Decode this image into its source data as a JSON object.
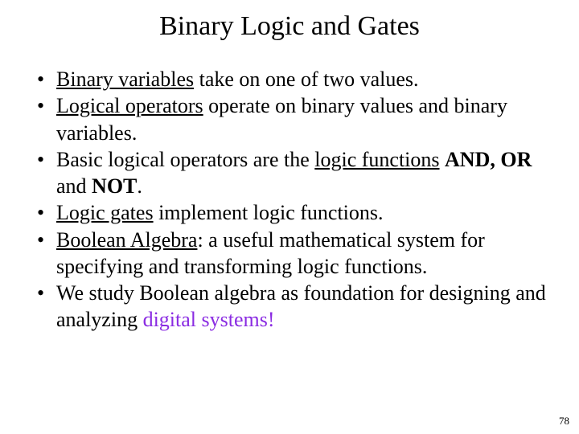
{
  "title": "Binary Logic and Gates",
  "highlight_color": "#8a2be2",
  "bullets": [
    {
      "segments": [
        {
          "text": "Binary variables",
          "underline": true
        },
        {
          "text": " take on one of two values."
        }
      ]
    },
    {
      "segments": [
        {
          "text": "Logical operators",
          "underline": true
        },
        {
          "text": " operate on binary values and binary variables."
        }
      ]
    },
    {
      "segments": [
        {
          "text": "Basic logical operators are the "
        },
        {
          "text": "logic functions",
          "underline": true
        },
        {
          "text": " "
        },
        {
          "text": "AND, OR",
          "bold": true
        },
        {
          "text": " and "
        },
        {
          "text": "NOT",
          "bold": true
        },
        {
          "text": "."
        }
      ]
    },
    {
      "segments": [
        {
          "text": "Logic gates",
          "underline": true
        },
        {
          "text": " implement logic functions."
        }
      ]
    },
    {
      "segments": [
        {
          "text": "Boolean Algebra",
          "underline": true
        },
        {
          "text": ": a useful mathematical system for specifying and transforming logic functions."
        }
      ]
    },
    {
      "segments": [
        {
          "text": "We study Boolean algebra as foundation for designing and analyzing "
        },
        {
          "text": "digital systems!",
          "color": "#8a2be2"
        }
      ]
    }
  ],
  "page_number": "78"
}
